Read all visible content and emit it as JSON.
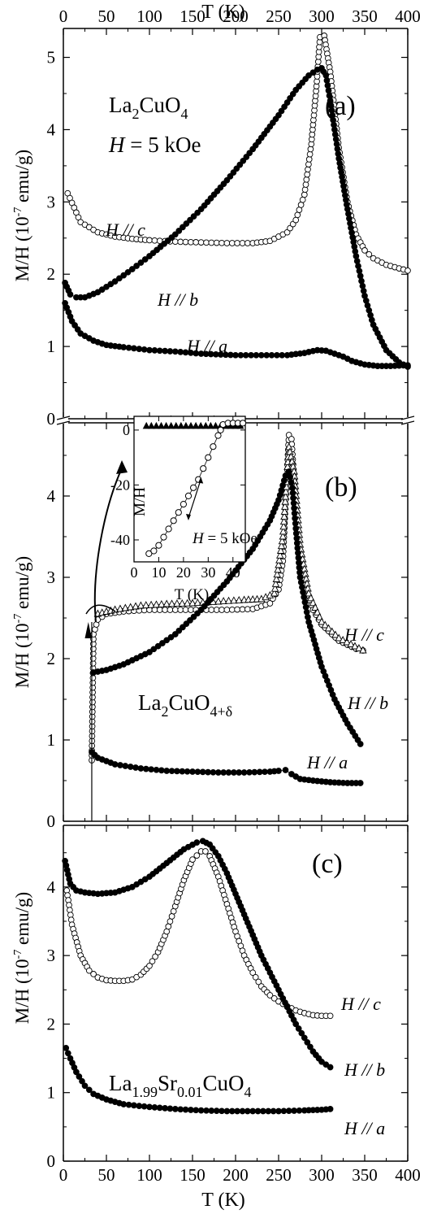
{
  "chart_data": [
    {
      "panel_label": "(a)",
      "type": "scatter",
      "xlabel": "T (K)",
      "ylabel": "M/H (10⁻⁷ emu/g)",
      "xlim": [
        0,
        400
      ],
      "ylim": [
        0,
        5.4
      ],
      "xticks": [
        0,
        50,
        100,
        150,
        200,
        250,
        300,
        350,
        400
      ],
      "yticks": [
        0,
        1,
        2,
        3,
        4,
        5
      ],
      "annotations": [
        "La₂CuO₄",
        "H = 5 kOe"
      ],
      "series": [
        {
          "name": "H // c",
          "marker": "open-circle",
          "x": [
            5,
            20,
            40,
            60,
            80,
            100,
            130,
            160,
            190,
            220,
            240,
            260,
            270,
            280,
            288,
            294,
            298,
            303,
            310,
            320,
            330,
            340,
            350,
            360,
            375,
            390,
            400
          ],
          "y": [
            3.12,
            2.72,
            2.58,
            2.52,
            2.49,
            2.47,
            2.45,
            2.44,
            2.43,
            2.43,
            2.46,
            2.58,
            2.75,
            3.1,
            3.8,
            4.6,
            5.28,
            5.3,
            4.8,
            3.75,
            3.0,
            2.55,
            2.33,
            2.22,
            2.13,
            2.08,
            2.05
          ]
        },
        {
          "name": "H // b",
          "marker": "filled-circle",
          "x": [
            2,
            8,
            15,
            25,
            40,
            60,
            80,
            100,
            130,
            160,
            190,
            220,
            250,
            270,
            285,
            295,
            300,
            305,
            310,
            320,
            330,
            340,
            350,
            360,
            375,
            390,
            400
          ],
          "y": [
            1.88,
            1.72,
            1.68,
            1.68,
            1.75,
            1.9,
            2.07,
            2.25,
            2.55,
            2.9,
            3.3,
            3.73,
            4.2,
            4.55,
            4.75,
            4.83,
            4.85,
            4.75,
            4.4,
            3.6,
            2.9,
            2.25,
            1.7,
            1.3,
            0.95,
            0.78,
            0.72
          ]
        },
        {
          "name": "H // a",
          "marker": "filled-circle",
          "x": [
            2,
            10,
            20,
            35,
            50,
            70,
            100,
            130,
            160,
            200,
            230,
            260,
            280,
            295,
            305,
            315,
            325,
            335,
            350,
            365,
            380,
            400
          ],
          "y": [
            1.6,
            1.35,
            1.18,
            1.08,
            1.02,
            0.99,
            0.95,
            0.93,
            0.9,
            0.88,
            0.88,
            0.88,
            0.91,
            0.95,
            0.94,
            0.9,
            0.86,
            0.8,
            0.75,
            0.73,
            0.73,
            0.74
          ]
        }
      ]
    },
    {
      "panel_label": "(b)",
      "type": "scatter",
      "xlabel": "T (K)",
      "ylabel": "M/H (10⁻⁷ emu/g)",
      "xlim": [
        0,
        400
      ],
      "ylim": [
        0,
        4.9
      ],
      "yticks": [
        0,
        1,
        2,
        3,
        4
      ],
      "annotations": [
        "La₂CuO₄₊δ"
      ],
      "series": [
        {
          "name": "H // c",
          "marker": "open-circle",
          "x": [
            33,
            35,
            40,
            50,
            70,
            100,
            130,
            160,
            190,
            220,
            240,
            250,
            255,
            258,
            262,
            265,
            268,
            272,
            280,
            290,
            300,
            320,
            340,
            348
          ],
          "y": [
            0.75,
            2.3,
            2.48,
            2.55,
            2.58,
            2.6,
            2.6,
            2.6,
            2.6,
            2.61,
            2.68,
            2.85,
            3.2,
            3.9,
            4.75,
            4.7,
            4.2,
            3.5,
            2.9,
            2.6,
            2.42,
            2.22,
            2.12,
            2.1
          ]
        },
        {
          "name": "H // c (triangles)",
          "marker": "open-triangle",
          "x": [
            40,
            60,
            90,
            120,
            150,
            180,
            210,
            230,
            245,
            255,
            262,
            268,
            275,
            285,
            300,
            320,
            348
          ],
          "y": [
            2.55,
            2.6,
            2.65,
            2.67,
            2.68,
            2.7,
            2.72,
            2.73,
            2.8,
            3.5,
            4.6,
            4.3,
            3.4,
            2.8,
            2.45,
            2.25,
            2.1
          ]
        },
        {
          "name": "H // b",
          "marker": "filled-circle",
          "x": [
            35,
            50,
            70,
            100,
            130,
            160,
            190,
            220,
            240,
            250,
            258,
            262,
            266,
            270,
            275,
            285,
            300,
            315,
            330,
            345
          ],
          "y": [
            1.83,
            1.86,
            1.93,
            2.08,
            2.3,
            2.6,
            2.95,
            3.35,
            3.7,
            3.95,
            4.25,
            4.3,
            4.1,
            3.6,
            3.0,
            2.45,
            1.9,
            1.5,
            1.2,
            0.95
          ]
        },
        {
          "name": "H // a",
          "marker": "filled-circle",
          "x": [
            33,
            40,
            60,
            90,
            120,
            150,
            180,
            210,
            240,
            250,
            258,
            265,
            275,
            290,
            310,
            330,
            345
          ],
          "y": [
            0.85,
            0.78,
            0.7,
            0.65,
            0.62,
            0.61,
            0.6,
            0.6,
            0.61,
            0.62,
            0.63,
            0.58,
            0.52,
            0.5,
            0.48,
            0.47,
            0.47
          ]
        }
      ],
      "inset": {
        "type": "scatter",
        "xlabel": "T (K)",
        "ylabel": "M/H",
        "annotation": "H = 5 kOe",
        "xlim": [
          0,
          45
        ],
        "ylim": [
          -48,
          5
        ],
        "xticks": [
          0,
          10,
          20,
          30,
          40
        ],
        "yticks": [
          0,
          -20,
          -40
        ],
        "series": [
          {
            "name": "H // c (triangles)",
            "marker": "filled-triangle",
            "x": [
              5,
              7,
              9,
              11,
              13,
              15,
              17,
              19,
              21,
              23,
              25,
              27,
              29,
              31,
              33,
              35,
              37,
              39,
              41,
              43
            ],
            "y": [
              1.5,
              1.5,
              1.5,
              1.5,
              1.5,
              1.5,
              1.5,
              1.5,
              1.5,
              1.5,
              1.5,
              1.5,
              1.5,
              1.5,
              1.5,
              1.5,
              1.5,
              1.5,
              1.5,
              1.5
            ]
          },
          {
            "name": "H // c",
            "marker": "open-circle",
            "x": [
              6,
              8,
              10,
              12,
              14,
              16,
              18,
              20,
              22,
              24,
              26,
              28,
              30,
              32,
              34,
              35,
              36,
              38,
              40,
              42,
              44
            ],
            "y": [
              -45,
              -44,
              -42,
              -39,
              -36,
              -33,
              -30,
              -27,
              -24,
              -21,
              -18,
              -14,
              -10,
              -6,
              -2,
              0,
              2,
              2.5,
              2.5,
              2.5,
              2.5
            ]
          }
        ]
      }
    },
    {
      "panel_label": "(c)",
      "type": "scatter",
      "xlabel": "T (K)",
      "ylabel": "M/H (10⁻⁷ emu/g)",
      "xlim": [
        0,
        400
      ],
      "ylim": [
        0,
        4.9
      ],
      "xticks": [
        0,
        50,
        100,
        150,
        200,
        250,
        300,
        350,
        400
      ],
      "yticks": [
        0,
        1,
        2,
        3,
        4
      ],
      "annotations": [
        "La₁.₉₉Sr₀.₀₁CuO₄"
      ],
      "series": [
        {
          "name": "H // c",
          "marker": "open-circle",
          "x": [
            4,
            10,
            20,
            30,
            40,
            50,
            60,
            70,
            80,
            90,
            100,
            110,
            120,
            130,
            140,
            150,
            160,
            165,
            170,
            180,
            190,
            200,
            210,
            220,
            230,
            240,
            250,
            260,
            270,
            280,
            290,
            300,
            310
          ],
          "y": [
            3.95,
            3.45,
            3.0,
            2.78,
            2.68,
            2.64,
            2.63,
            2.63,
            2.65,
            2.72,
            2.85,
            3.05,
            3.35,
            3.72,
            4.1,
            4.4,
            4.52,
            4.52,
            4.45,
            4.15,
            3.75,
            3.35,
            3.0,
            2.75,
            2.55,
            2.42,
            2.33,
            2.26,
            2.2,
            2.16,
            2.13,
            2.12,
            2.12
          ]
        },
        {
          "name": "H // b",
          "marker": "filled-circle",
          "x": [
            2,
            8,
            15,
            25,
            40,
            60,
            80,
            100,
            120,
            140,
            155,
            162,
            170,
            180,
            190,
            200,
            210,
            220,
            230,
            240,
            250,
            260,
            270,
            280,
            290,
            300,
            310
          ],
          "y": [
            4.38,
            4.05,
            3.95,
            3.92,
            3.9,
            3.92,
            4.0,
            4.15,
            4.35,
            4.55,
            4.65,
            4.67,
            4.62,
            4.45,
            4.2,
            3.9,
            3.6,
            3.3,
            3.0,
            2.75,
            2.5,
            2.25,
            2.0,
            1.8,
            1.6,
            1.45,
            1.37
          ]
        },
        {
          "name": "H // a",
          "marker": "filled-circle",
          "x": [
            3,
            8,
            15,
            25,
            35,
            50,
            70,
            100,
            130,
            160,
            190,
            220,
            250,
            280,
            300,
            310
          ],
          "y": [
            1.65,
            1.5,
            1.3,
            1.1,
            0.98,
            0.9,
            0.83,
            0.79,
            0.76,
            0.74,
            0.73,
            0.73,
            0.73,
            0.74,
            0.75,
            0.76
          ]
        }
      ]
    }
  ],
  "labels": {
    "top_xaxis": "T (K)",
    "bottom_xaxis": "T (K)",
    "ylabel_a": "M/H (10",
    "ylabel_b": "M/H (10",
    "ylabel_c": "M/H (10",
    "ylabel_exp": "-7",
    "ylabel_unit": " emu/g)",
    "panel_a": "(a)",
    "panel_b": "(b)",
    "panel_c": "(c)",
    "compound_a": "La",
    "compound_a_sub1": "2",
    "compound_a_mid": "CuO",
    "compound_a_sub2": "4",
    "field_a_h": "H",
    "field_a_rest": " = 5 kOe",
    "compound_b": "La",
    "compound_b_sub1": "2",
    "compound_b_mid": "CuO",
    "compound_b_sub2": "4+δ",
    "compound_c": "La",
    "compound_c_sub1": "1.99",
    "compound_c_mid": "Sr",
    "compound_c_sub2": "0.01",
    "compound_c_end": "CuO",
    "compound_c_sub3": "4",
    "hc": "H // c",
    "hb": "H // b",
    "ha": "H // a",
    "inset_ylabel": "M/H",
    "inset_xlabel": "T  (K)",
    "inset_field": "H = 5 kOe"
  }
}
